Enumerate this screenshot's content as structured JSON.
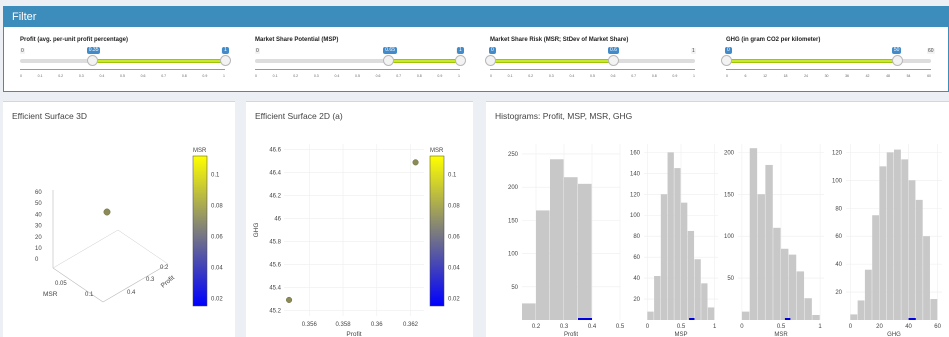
{
  "filter": {
    "title": "Filter",
    "sliders": [
      {
        "label": "Profit (avg. per-unit profit percentage)",
        "min": "0",
        "max": "1",
        "value": "0.35",
        "ticks": [
          "0",
          "0.1",
          "0.2",
          "0.3",
          "0.4",
          "0.5",
          "0.6",
          "0.7",
          "0.8",
          "0.9",
          "1"
        ],
        "low": 0.35,
        "high": 1.0
      },
      {
        "label": "Market Share Potential (MSP)",
        "min": "0",
        "max": "1",
        "value": "0.65",
        "ticks": [
          "0",
          "0.1",
          "0.2",
          "0.3",
          "0.4",
          "0.5",
          "0.6",
          "0.7",
          "0.8",
          "0.9",
          "1"
        ],
        "low": 0.65,
        "high": 1.0
      },
      {
        "label": "Market Share Risk (MSR; StDev of Market Share)",
        "min": "0",
        "max": "1",
        "value": "0.6",
        "ticks": [
          "0",
          "0.1",
          "0.2",
          "0.3",
          "0.4",
          "0.5",
          "0.6",
          "0.7",
          "0.8",
          "0.9",
          "1"
        ],
        "low": 0.0,
        "high": 0.6
      },
      {
        "label": "GHG (in gram CO2 per kilometer)",
        "min": "0",
        "max": "60",
        "value": "50",
        "ticks": [
          "0",
          "6",
          "12",
          "18",
          "24",
          "30",
          "36",
          "42",
          "48",
          "54",
          "60"
        ],
        "low": 0.0,
        "high": 0.8333
      }
    ]
  },
  "panel3d": {
    "title": "Efficient Surface 3D",
    "colorbar_title": "MSR",
    "colorbar_ticks": [
      "0.1",
      "0.08",
      "0.06",
      "0.04",
      "0.02"
    ],
    "z_ticks": [
      "60",
      "50",
      "40",
      "30",
      "20",
      "10",
      "0"
    ],
    "msr_ticks": [
      "0.05",
      "0.1"
    ],
    "profit_ticks": [
      "0.4",
      "0.3",
      "0.2"
    ],
    "x_label": "MSR",
    "y_label": "Profit"
  },
  "panel2d": {
    "title": "Efficient Surface 2D (a)",
    "colorbar_title": "MSR",
    "colorbar_ticks": [
      "0.1",
      "0.08",
      "0.06",
      "0.04",
      "0.02"
    ],
    "x_label": "Profit",
    "y_label": "GHG",
    "x_ticks": [
      "0.356",
      "0.358",
      "0.36",
      "0.362"
    ],
    "y_ticks": [
      "46.6",
      "46.4",
      "46.2",
      "46",
      "45.8",
      "45.6",
      "45.4",
      "45.2"
    ]
  },
  "panelHist": {
    "title": "Histograms: Profit, MSP, MSR, GHG"
  },
  "chart_data": [
    {
      "type": "scatter",
      "title": "Efficient Surface 2D (a)",
      "xlabel": "Profit",
      "ylabel": "GHG",
      "xlim": [
        0.3545,
        0.3628
      ],
      "ylim": [
        45.15,
        46.65
      ],
      "points": [
        {
          "x": 0.3548,
          "y": 45.29,
          "msr": 0.08
        },
        {
          "x": 0.3623,
          "y": 46.49,
          "msr": 0.08
        }
      ],
      "colorscale": {
        "title": "MSR",
        "range": [
          0.02,
          0.11
        ],
        "colors": [
          "#0000ff",
          "#808080",
          "#ffff00"
        ]
      }
    },
    {
      "type": "bar",
      "title": "Profit",
      "xlabel": "Profit",
      "x_ticks": [
        "0.2",
        "0.3",
        "0.4",
        "0.5"
      ],
      "y_ticks": [
        "250",
        "200",
        "150",
        "100",
        "50"
      ],
      "ylim": [
        0,
        265
      ],
      "bin_edges": [
        0.15,
        0.2,
        0.25,
        0.3,
        0.35,
        0.4,
        0.45
      ],
      "values": [
        25,
        165,
        242,
        215,
        205,
        0
      ],
      "highlight": {
        "x0": 0.35,
        "x1": 0.4
      }
    },
    {
      "type": "bar",
      "title": "MSP",
      "xlabel": "MSP",
      "x_ticks": [
        "0",
        "0.5",
        "1"
      ],
      "y_ticks": [
        "160",
        "140",
        "120",
        "100",
        "80",
        "60",
        "40",
        "20"
      ],
      "ylim": [
        0,
        168
      ],
      "bin_edges": [
        0.0,
        0.1,
        0.2,
        0.3,
        0.4,
        0.5,
        0.6,
        0.7,
        0.8,
        0.9,
        1.0
      ],
      "values": [
        8,
        42,
        120,
        160,
        145,
        112,
        85,
        58,
        35,
        12
      ],
      "highlight": {
        "x0": 0.62,
        "x1": 0.7
      }
    },
    {
      "type": "bar",
      "title": "MSR",
      "xlabel": "MSR",
      "x_ticks": [
        "0",
        "0.5",
        "1"
      ],
      "y_ticks": [
        "200",
        "150",
        "100",
        "50"
      ],
      "ylim": [
        0,
        210
      ],
      "bin_edges": [
        0.0,
        0.1,
        0.2,
        0.3,
        0.4,
        0.5,
        0.6,
        0.7,
        0.8,
        0.9,
        1.0
      ],
      "values": [
        10,
        205,
        150,
        185,
        110,
        85,
        78,
        58,
        26,
        6
      ],
      "highlight": {
        "x0": 0.55,
        "x1": 0.62
      }
    },
    {
      "type": "bar",
      "title": "GHG",
      "xlabel": "GHG",
      "x_ticks": [
        "0",
        "20",
        "40",
        "60"
      ],
      "y_ticks": [
        "120",
        "100",
        "80",
        "60",
        "40",
        "20"
      ],
      "ylim": [
        0,
        126
      ],
      "bin_edges": [
        0,
        5,
        10,
        15,
        20,
        25,
        30,
        35,
        40,
        45,
        50,
        55,
        60
      ],
      "values": [
        4,
        14,
        36,
        75,
        110,
        120,
        122,
        115,
        100,
        86,
        60,
        15
      ],
      "highlight": {
        "x0": 40,
        "x1": 45
      }
    }
  ]
}
